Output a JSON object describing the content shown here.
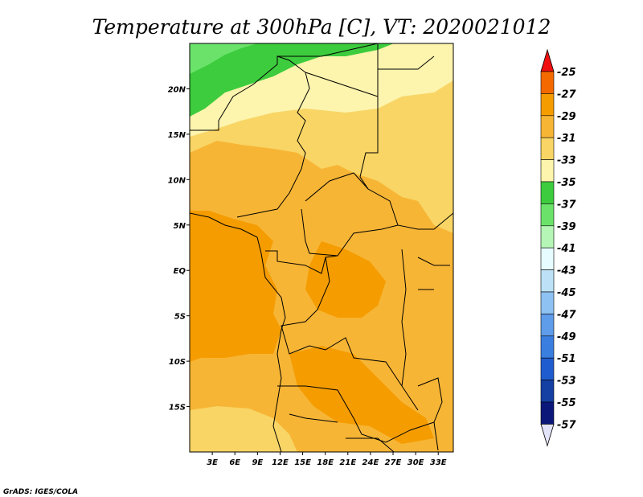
{
  "title": "Temperature at 300hPa [C], VT: 2020021012",
  "credit": "GrADS: IGES/COLA",
  "map": {
    "lat_labels": [
      "20N",
      "15N",
      "10N",
      "5N",
      "EQ",
      "5S",
      "10S",
      "15S"
    ],
    "lon_labels": [
      "3E",
      "6E",
      "9E",
      "12E",
      "15E",
      "18E",
      "21E",
      "24E",
      "27E",
      "30E",
      "33E"
    ],
    "lon_range": [
      0,
      35
    ],
    "lat_range": [
      -20,
      25
    ]
  },
  "colorbar": {
    "labels": [
      "-25",
      "-27",
      "-29",
      "-31",
      "-33",
      "-35",
      "-37",
      "-39",
      "-41",
      "-43",
      "-45",
      "-47",
      "-49",
      "-51",
      "-53",
      "-55",
      "-57"
    ],
    "colors": [
      "#f01010",
      "#f56a00",
      "#f59c00",
      "#f7b535",
      "#f8d565",
      "#fdf4ad",
      "#3dcc3d",
      "#6be36b",
      "#b5f5b5",
      "#e6fcff",
      "#bde2f7",
      "#8ec2f2",
      "#5f9ce9",
      "#3a7ee0",
      "#1f5ccf",
      "#143fa3",
      "#0c177a",
      "#e3e3fa"
    ]
  }
}
